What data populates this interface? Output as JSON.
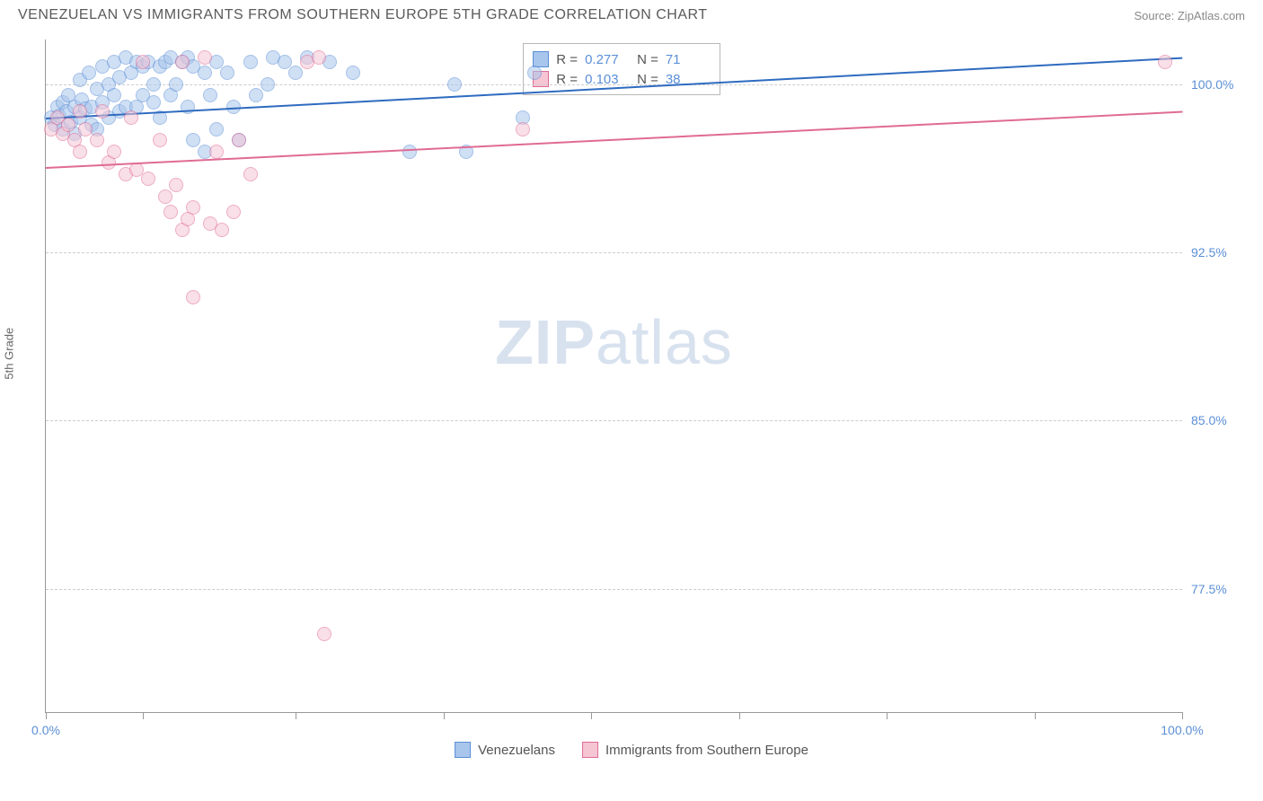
{
  "header": {
    "title": "VENEZUELAN VS IMMIGRANTS FROM SOUTHERN EUROPE 5TH GRADE CORRELATION CHART",
    "source": "Source: ZipAtlas.com"
  },
  "chart": {
    "type": "scatter",
    "y_axis_label": "5th Grade",
    "watermark_bold": "ZIP",
    "watermark_light": "atlas",
    "background_color": "#ffffff",
    "grid_color": "#cccccc",
    "axis_color": "#999999",
    "tick_label_color": "#5b8fd6",
    "xlim": [
      0,
      100
    ],
    "ylim": [
      72,
      102
    ],
    "y_ticks": [
      {
        "v": 100.0,
        "label": "100.0%"
      },
      {
        "v": 92.5,
        "label": "92.5%"
      },
      {
        "v": 85.0,
        "label": "85.0%"
      },
      {
        "v": 77.5,
        "label": "77.5%"
      }
    ],
    "x_tick_positions": [
      0,
      8.5,
      22,
      35,
      48,
      61,
      74,
      87,
      100
    ],
    "x_labels": [
      {
        "v": 0,
        "label": "0.0%"
      },
      {
        "v": 100,
        "label": "100.0%"
      }
    ],
    "series": [
      {
        "name": "Venezuelans",
        "color_fill": "#a8c5ec",
        "color_stroke": "#5b8fd6",
        "r_label": "R =",
        "r_value": "0.277",
        "n_label": "N =",
        "n_value": "71",
        "trend": {
          "x1": 0,
          "y1": 98.5,
          "x2": 100,
          "y2": 101.2,
          "color": "#2e6bc0",
          "width": 2
        },
        "points": [
          [
            0.5,
            98.5
          ],
          [
            0.8,
            98.2
          ],
          [
            1.0,
            99.0
          ],
          [
            1.2,
            98.6
          ],
          [
            1.5,
            98.0
          ],
          [
            1.5,
            99.2
          ],
          [
            1.8,
            98.8
          ],
          [
            2.0,
            99.5
          ],
          [
            2.2,
            98.3
          ],
          [
            2.5,
            99.0
          ],
          [
            2.5,
            97.8
          ],
          [
            3.0,
            98.5
          ],
          [
            3.0,
            100.2
          ],
          [
            3.2,
            99.3
          ],
          [
            3.5,
            98.9
          ],
          [
            3.8,
            100.5
          ],
          [
            4.0,
            99.0
          ],
          [
            4.0,
            98.2
          ],
          [
            4.5,
            99.8
          ],
          [
            4.5,
            98.0
          ],
          [
            5.0,
            100.8
          ],
          [
            5.0,
            99.2
          ],
          [
            5.5,
            98.5
          ],
          [
            5.5,
            100.0
          ],
          [
            6.0,
            99.5
          ],
          [
            6.0,
            101.0
          ],
          [
            6.5,
            98.8
          ],
          [
            6.5,
            100.3
          ],
          [
            7.0,
            99.0
          ],
          [
            7.0,
            101.2
          ],
          [
            7.5,
            100.5
          ],
          [
            8.0,
            99.0
          ],
          [
            8.0,
            101.0
          ],
          [
            8.5,
            99.5
          ],
          [
            8.5,
            100.8
          ],
          [
            9.0,
            101.0
          ],
          [
            9.5,
            99.2
          ],
          [
            9.5,
            100.0
          ],
          [
            10.0,
            100.8
          ],
          [
            10.0,
            98.5
          ],
          [
            10.5,
            101.0
          ],
          [
            11.0,
            99.5
          ],
          [
            11.0,
            101.2
          ],
          [
            11.5,
            100.0
          ],
          [
            12.0,
            101.0
          ],
          [
            12.5,
            99.0
          ],
          [
            12.5,
            101.2
          ],
          [
            13.0,
            97.5
          ],
          [
            13.0,
            100.8
          ],
          [
            14.0,
            97.0
          ],
          [
            14.0,
            100.5
          ],
          [
            14.5,
            99.5
          ],
          [
            15.0,
            101.0
          ],
          [
            15.0,
            98.0
          ],
          [
            16.0,
            100.5
          ],
          [
            16.5,
            99.0
          ],
          [
            17.0,
            97.5
          ],
          [
            18.0,
            101.0
          ],
          [
            18.5,
            99.5
          ],
          [
            19.5,
            100.0
          ],
          [
            20.0,
            101.2
          ],
          [
            21.0,
            101.0
          ],
          [
            22.0,
            100.5
          ],
          [
            23.0,
            101.2
          ],
          [
            25.0,
            101.0
          ],
          [
            27.0,
            100.5
          ],
          [
            32.0,
            97.0
          ],
          [
            36.0,
            100.0
          ],
          [
            37.0,
            97.0
          ],
          [
            42.0,
            98.5
          ],
          [
            43.0,
            100.5
          ]
        ]
      },
      {
        "name": "Immigrants from Southern Europe",
        "color_fill": "#f5c5d4",
        "color_stroke": "#e06b94",
        "r_label": "R =",
        "r_value": "0.103",
        "n_label": "N =",
        "n_value": "38",
        "trend": {
          "x1": 0,
          "y1": 96.3,
          "x2": 100,
          "y2": 98.8,
          "color": "#e06b94",
          "width": 2
        },
        "points": [
          [
            0.5,
            98.0
          ],
          [
            1.0,
            98.5
          ],
          [
            1.5,
            97.8
          ],
          [
            2.0,
            98.2
          ],
          [
            2.5,
            97.5
          ],
          [
            3.0,
            98.8
          ],
          [
            3.0,
            97.0
          ],
          [
            3.5,
            98.0
          ],
          [
            4.5,
            97.5
          ],
          [
            5.0,
            98.8
          ],
          [
            5.5,
            96.5
          ],
          [
            6.0,
            97.0
          ],
          [
            7.0,
            96.0
          ],
          [
            7.5,
            98.5
          ],
          [
            8.0,
            96.2
          ],
          [
            8.5,
            101.0
          ],
          [
            9.0,
            95.8
          ],
          [
            10.0,
            97.5
          ],
          [
            10.5,
            95.0
          ],
          [
            11.0,
            94.3
          ],
          [
            11.5,
            95.5
          ],
          [
            12.0,
            101.0
          ],
          [
            12.0,
            93.5
          ],
          [
            12.5,
            94.0
          ],
          [
            13.0,
            94.5
          ],
          [
            13.0,
            90.5
          ],
          [
            14.0,
            101.2
          ],
          [
            14.5,
            93.8
          ],
          [
            15.0,
            97.0
          ],
          [
            15.5,
            93.5
          ],
          [
            16.5,
            94.3
          ],
          [
            17.0,
            97.5
          ],
          [
            18.0,
            96.0
          ],
          [
            23.0,
            101.0
          ],
          [
            24.0,
            101.2
          ],
          [
            24.5,
            75.5
          ],
          [
            42.0,
            98.0
          ],
          [
            98.5,
            101.0
          ]
        ]
      }
    ],
    "legend": {
      "s1_label": "Venezuelans",
      "s2_label": "Immigrants from Southern Europe"
    }
  }
}
